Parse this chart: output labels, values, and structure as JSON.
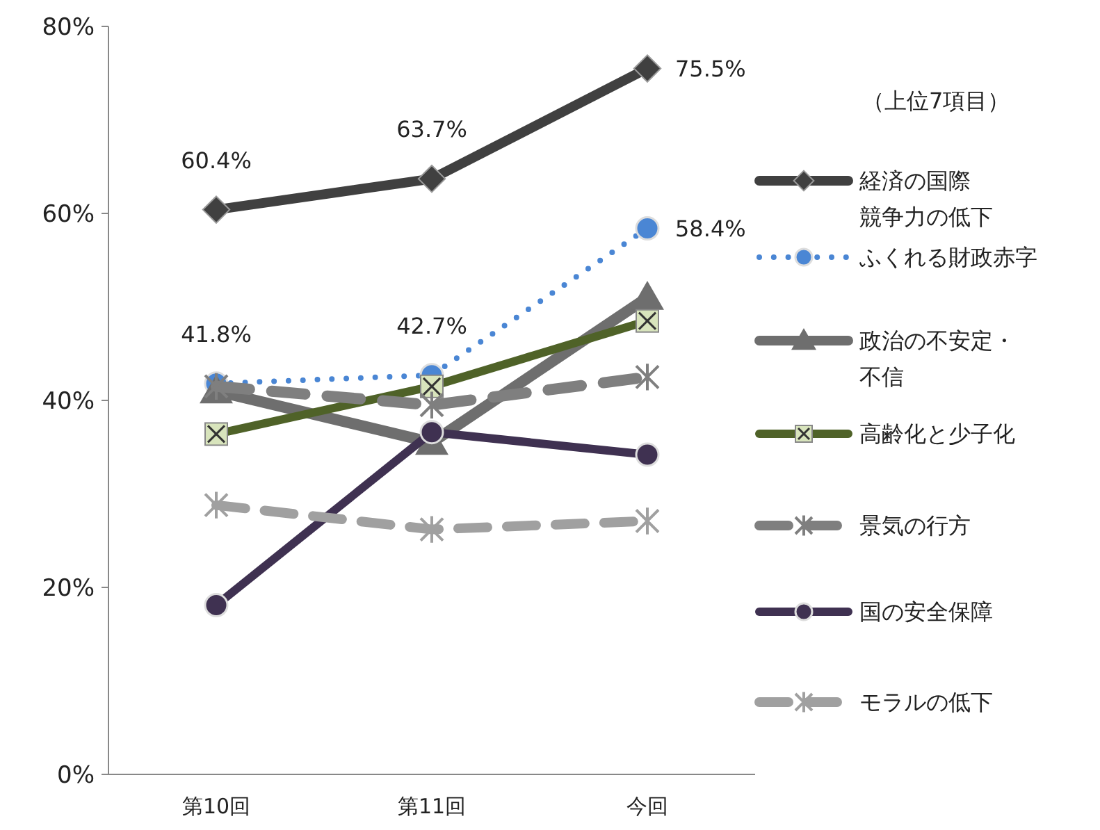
{
  "chart_data": {
    "type": "line",
    "categories": [
      "第10回",
      "第11回",
      "今回"
    ],
    "ylim": [
      0,
      80
    ],
    "yticks": [
      {
        "value": 0,
        "label": "0%"
      },
      {
        "value": 20,
        "label": "20%"
      },
      {
        "value": 40,
        "label": "40%"
      },
      {
        "value": 60,
        "label": "60%"
      },
      {
        "value": 80,
        "label": "80%"
      }
    ],
    "grid": false,
    "legend": "right",
    "legend_title": "（上位7項目）",
    "series": [
      {
        "name": "経済の国際競争力の低下",
        "color": "#404040",
        "values": [
          60.4,
          63.7,
          75.5
        ],
        "marker": "diamond",
        "line_style": "solid",
        "value_labels": [
          "60.4%",
          "63.7%",
          "75.5%"
        ]
      },
      {
        "name": "ふくれる財政赤字",
        "color": "#4a86d4",
        "values": [
          41.8,
          42.7,
          58.4
        ],
        "marker": "circle",
        "line_style": "dotted",
        "value_labels": [
          "41.8%",
          "42.7%",
          "58.4%"
        ]
      },
      {
        "name": "政治の不安定・不信",
        "color": "#6e6e6e",
        "values": [
          41.0,
          35.5,
          51.0
        ],
        "marker": "triangle",
        "line_style": "solid"
      },
      {
        "name": "高齢化と少子化",
        "color": "#4f6228",
        "values": [
          36.4,
          41.5,
          48.5
        ],
        "marker": "square",
        "line_style": "solid"
      },
      {
        "name": "景気の行方",
        "color": "#7f7f7f",
        "values": [
          41.5,
          39.5,
          42.5
        ],
        "marker": "cross",
        "line_style": "dashed"
      },
      {
        "name": "国の安全保障",
        "color": "#3f3151",
        "values": [
          18.1,
          36.6,
          34.2
        ],
        "marker": "circle",
        "line_style": "solid"
      },
      {
        "name": "モラルの低下",
        "color": "#a0a0a0",
        "values": [
          28.8,
          26.2,
          27.1
        ],
        "marker": "cross",
        "line_style": "dashed"
      }
    ]
  }
}
